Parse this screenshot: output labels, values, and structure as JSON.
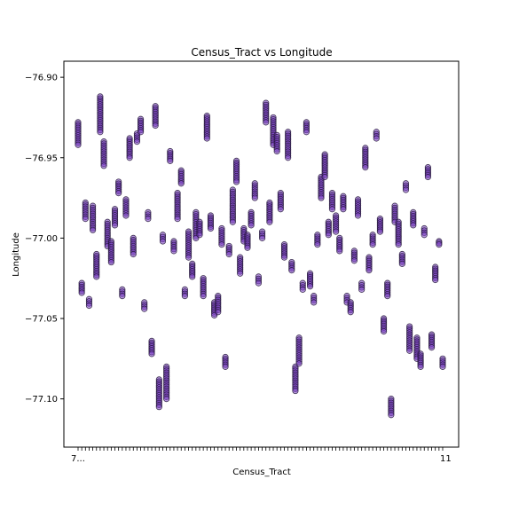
{
  "chart_data": {
    "type": "scatter",
    "title": "Census_Tract vs Longitude",
    "xlabel": "Census_Tract",
    "ylabel": "Longitude",
    "ylim": [
      -77.13,
      -76.89
    ],
    "yticks": [
      -76.9,
      -76.95,
      -77.0,
      -77.05,
      -77.1
    ],
    "ytick_labels": [
      "−76.90",
      "−76.95",
      "−77.00",
      "−77.05",
      "−77.10"
    ],
    "x_first_tick_label": "7...",
    "x_last_tick_label": "11",
    "grid": false,
    "marker_color": "#7b3fc4",
    "marker_edge": "#1b1030",
    "series": [
      {
        "values": [
          [
            -76.928,
            -76.942
          ],
          [
            -77.028,
            -77.034
          ],
          [
            -76.978,
            -76.988
          ],
          [
            -77.038,
            -77.042
          ],
          [
            -76.98,
            -76.995
          ],
          [
            -77.01,
            -77.024
          ],
          [
            -76.912,
            -76.934
          ],
          [
            -76.94,
            -76.955
          ],
          [
            -76.99,
            -77.005
          ],
          [
            -77.002,
            -77.015
          ],
          [
            -76.982,
            -76.992
          ],
          [
            -76.965,
            -76.972
          ],
          [
            -77.032,
            -77.036
          ],
          [
            -76.976,
            -76.986
          ],
          [
            -76.938,
            -76.95
          ],
          [
            -77.0,
            -77.01
          ],
          [
            -76.935,
            -76.94
          ],
          [
            -76.926,
            -76.934
          ],
          [
            -77.04,
            -77.044
          ],
          [
            -76.984,
            -76.988
          ],
          [
            -77.064,
            -77.072
          ],
          [
            -76.918,
            -76.93
          ],
          [
            -77.088,
            -77.105
          ],
          [
            -76.998,
            -77.002
          ],
          [
            -77.08,
            -77.1
          ],
          [
            -76.946,
            -76.952
          ],
          [
            -77.002,
            -77.008
          ],
          [
            -76.972,
            -76.988
          ],
          [
            -76.958,
            -76.966
          ],
          [
            -77.032,
            -77.036
          ],
          [
            -76.996,
            -77.012
          ],
          [
            -77.016,
            -77.024
          ],
          [
            -76.984,
            -77.0
          ],
          [
            -76.99,
            -76.998
          ],
          [
            -77.025,
            -77.036
          ],
          [
            -76.924,
            -76.938
          ],
          [
            -76.986,
            -76.994
          ],
          [
            -77.04,
            -77.048
          ],
          [
            -77.036,
            -77.046
          ],
          [
            -76.994,
            -77.004
          ],
          [
            -77.074,
            -77.08
          ],
          [
            -77.005,
            -77.01
          ],
          [
            -76.97,
            -76.99
          ],
          [
            -76.952,
            -76.965
          ],
          [
            -77.012,
            -77.022
          ],
          [
            -76.994,
            -77.002
          ],
          [
            -76.998,
            -77.006
          ],
          [
            -76.984,
            -76.992
          ],
          [
            -76.966,
            -76.975
          ],
          [
            -77.024,
            -77.028
          ],
          [
            -76.996,
            -77.0
          ],
          [
            -76.916,
            -76.928
          ],
          [
            -76.978,
            -76.99
          ],
          [
            -76.925,
            -76.942
          ],
          [
            -76.936,
            -76.946
          ],
          [
            -76.972,
            -76.982
          ],
          [
            -77.004,
            -77.012
          ],
          [
            -76.934,
            -76.95
          ],
          [
            -77.015,
            -77.02
          ],
          [
            -77.08,
            -77.095
          ],
          [
            -77.062,
            -77.078
          ],
          [
            -77.028,
            -77.032
          ],
          [
            -76.928,
            -76.934
          ],
          [
            -77.022,
            -77.03
          ],
          [
            -77.036,
            -77.04
          ],
          [
            -76.998,
            -77.004
          ],
          [
            -76.962,
            -76.975
          ],
          [
            -76.948,
            -76.962
          ],
          [
            -76.99,
            -76.998
          ],
          [
            -76.972,
            -76.982
          ],
          [
            -76.986,
            -76.996
          ],
          [
            -77.0,
            -77.008
          ],
          [
            -76.974,
            -76.982
          ],
          [
            -77.036,
            -77.04
          ],
          [
            -77.04,
            -77.046
          ],
          [
            -77.008,
            -77.014
          ],
          [
            -76.976,
            -76.986
          ],
          [
            -77.028,
            -77.032
          ],
          [
            -76.944,
            -76.956
          ],
          [
            -77.012,
            -77.02
          ],
          [
            -76.998,
            -77.004
          ],
          [
            -76.934,
            -76.938
          ],
          [
            -76.988,
            -76.996
          ],
          [
            -77.05,
            -77.058
          ],
          [
            -77.028,
            -77.036
          ],
          [
            -77.1,
            -77.11
          ],
          [
            -76.98,
            -76.99
          ],
          [
            -76.99,
            -77.004
          ],
          [
            -77.01,
            -77.016
          ],
          [
            -76.966,
            -76.97
          ],
          [
            -77.055,
            -77.07
          ],
          [
            -76.984,
            -76.992
          ],
          [
            -77.062,
            -77.075
          ],
          [
            -77.072,
            -77.08
          ],
          [
            -76.994,
            -76.998
          ],
          [
            -76.956,
            -76.962
          ],
          [
            -77.06,
            -77.068
          ],
          [
            -77.018,
            -77.026
          ],
          [
            -77.002,
            -77.004
          ],
          [
            -77.075,
            -77.08
          ]
        ]
      }
    ]
  }
}
